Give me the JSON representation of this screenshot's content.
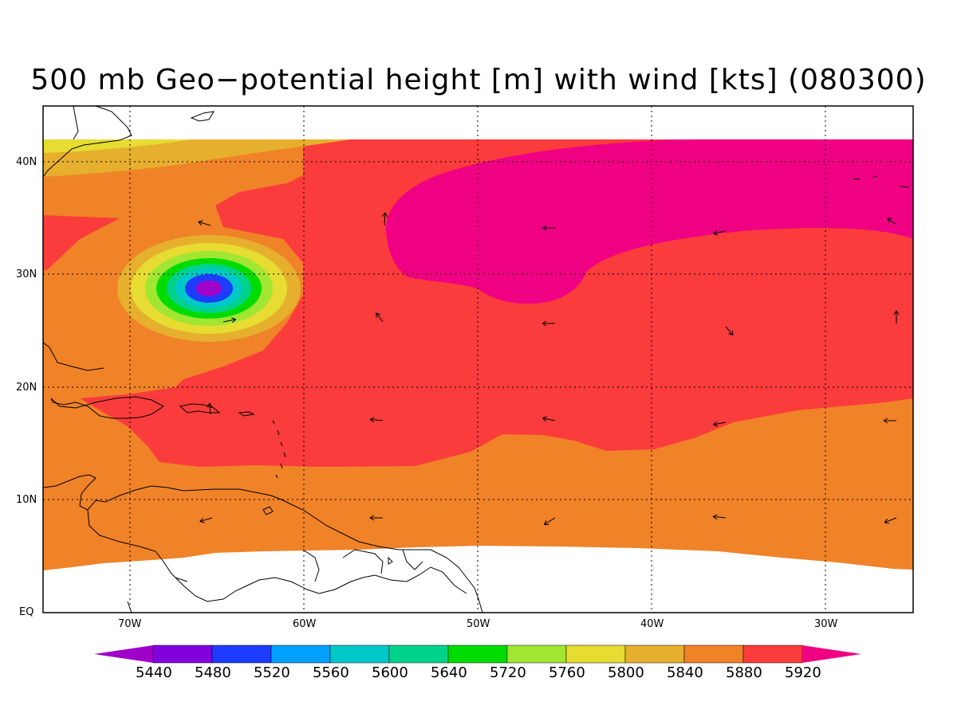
{
  "title": "500 mb Geo−potential height [m] with wind [kts] (080300)",
  "lat_labels": [
    "40N",
    "30N",
    "20N",
    "10N",
    "EQ"
  ],
  "lon_labels": [
    "70W",
    "60W",
    "50W",
    "40W",
    "30W"
  ],
  "colorbar": {
    "values": [
      "5440",
      "5480",
      "5520",
      "5560",
      "5600",
      "5640",
      "5720",
      "5760",
      "5800",
      "5840",
      "5880",
      "5920"
    ],
    "colors": [
      "#a000c8",
      "#8200dc",
      "#1e3cff",
      "#00a0ff",
      "#00c8c8",
      "#00d28c",
      "#00dc00",
      "#a0e632",
      "#e6dc32",
      "#e6af2d",
      "#f08228",
      "#fa3c3c",
      "#f00082"
    ]
  },
  "fields": {
    "field_colors": {
      "f5800": "#e6dc32",
      "f5840": "#e6af2d",
      "f5880": "#f08228",
      "f5920": "#fa3c3c",
      "f5940": "#f00082",
      "low": [
        "#e6af2d",
        "#e6dc32",
        "#a0e632",
        "#00dc00",
        "#00d28c",
        "#00c8c8",
        "#1e3cff",
        "#a000c8"
      ]
    }
  },
  "map_extent": {
    "lon_min": -75,
    "lon_max": -25,
    "lat_min": 0,
    "lat_max": 45
  }
}
